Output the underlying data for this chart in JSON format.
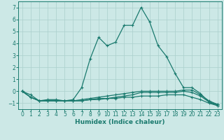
{
  "title": "",
  "xlabel": "Humidex (Indice chaleur)",
  "bg_color": "#cce8e6",
  "line_color": "#1a7a6e",
  "grid_color": "#aacfcc",
  "lines": [
    {
      "x": [
        0,
        1,
        2,
        3,
        4,
        5,
        6,
        7,
        8,
        9,
        10,
        11,
        12,
        13,
        14,
        15,
        16,
        17,
        18,
        19,
        20,
        21,
        22,
        23
      ],
      "y": [
        0.0,
        -0.3,
        -0.8,
        -0.7,
        -0.7,
        -0.8,
        -0.7,
        0.3,
        2.7,
        4.5,
        3.8,
        4.1,
        5.5,
        5.5,
        7.0,
        5.8,
        3.8,
        2.9,
        1.5,
        0.3,
        0.3,
        -0.2,
        -0.9,
        -1.1
      ]
    },
    {
      "x": [
        0,
        1,
        2,
        3,
        4,
        5,
        6,
        7,
        8,
        9,
        10,
        11,
        12,
        13,
        14,
        15,
        16,
        17,
        18,
        19,
        20,
        21,
        22,
        23
      ],
      "y": [
        0.0,
        -0.5,
        -0.8,
        -0.8,
        -0.8,
        -0.8,
        -0.8,
        -0.7,
        -0.6,
        -0.5,
        -0.4,
        -0.3,
        -0.2,
        -0.1,
        0.0,
        0.0,
        0.0,
        0.0,
        0.0,
        0.1,
        0.1,
        -0.3,
        -0.8,
        -1.1
      ]
    },
    {
      "x": [
        0,
        1,
        2,
        3,
        4,
        5,
        6,
        7,
        8,
        9,
        10,
        11,
        12,
        13,
        14,
        15,
        16,
        17,
        18,
        19,
        20,
        21,
        22,
        23
      ],
      "y": [
        0.0,
        -0.5,
        -0.8,
        -0.8,
        -0.8,
        -0.8,
        -0.8,
        -0.8,
        -0.7,
        -0.6,
        -0.6,
        -0.5,
        -0.4,
        -0.3,
        -0.1,
        -0.1,
        -0.1,
        -0.1,
        -0.1,
        0.0,
        -0.1,
        -0.4,
        -0.9,
        -1.2
      ]
    },
    {
      "x": [
        0,
        1,
        2,
        3,
        4,
        5,
        6,
        7,
        8,
        9,
        10,
        11,
        12,
        13,
        14,
        15,
        16,
        17,
        18,
        19,
        20,
        21,
        22,
        23
      ],
      "y": [
        0.0,
        -0.5,
        -0.8,
        -0.8,
        -0.8,
        -0.8,
        -0.8,
        -0.8,
        -0.7,
        -0.7,
        -0.6,
        -0.6,
        -0.5,
        -0.5,
        -0.4,
        -0.4,
        -0.4,
        -0.3,
        -0.3,
        -0.3,
        -0.5,
        -0.7,
        -1.0,
        -1.2
      ]
    }
  ],
  "xlim": [
    -0.5,
    23.5
  ],
  "ylim": [
    -1.5,
    7.5
  ],
  "yticks": [
    -1,
    0,
    1,
    2,
    3,
    4,
    5,
    6,
    7
  ],
  "xticks": [
    0,
    1,
    2,
    3,
    4,
    5,
    6,
    7,
    8,
    9,
    10,
    11,
    12,
    13,
    14,
    15,
    16,
    17,
    18,
    19,
    20,
    21,
    22,
    23
  ],
  "marker": "+",
  "markersize": 3,
  "linewidth": 0.9,
  "label_fontsize": 6.5,
  "tick_fontsize": 5.5
}
